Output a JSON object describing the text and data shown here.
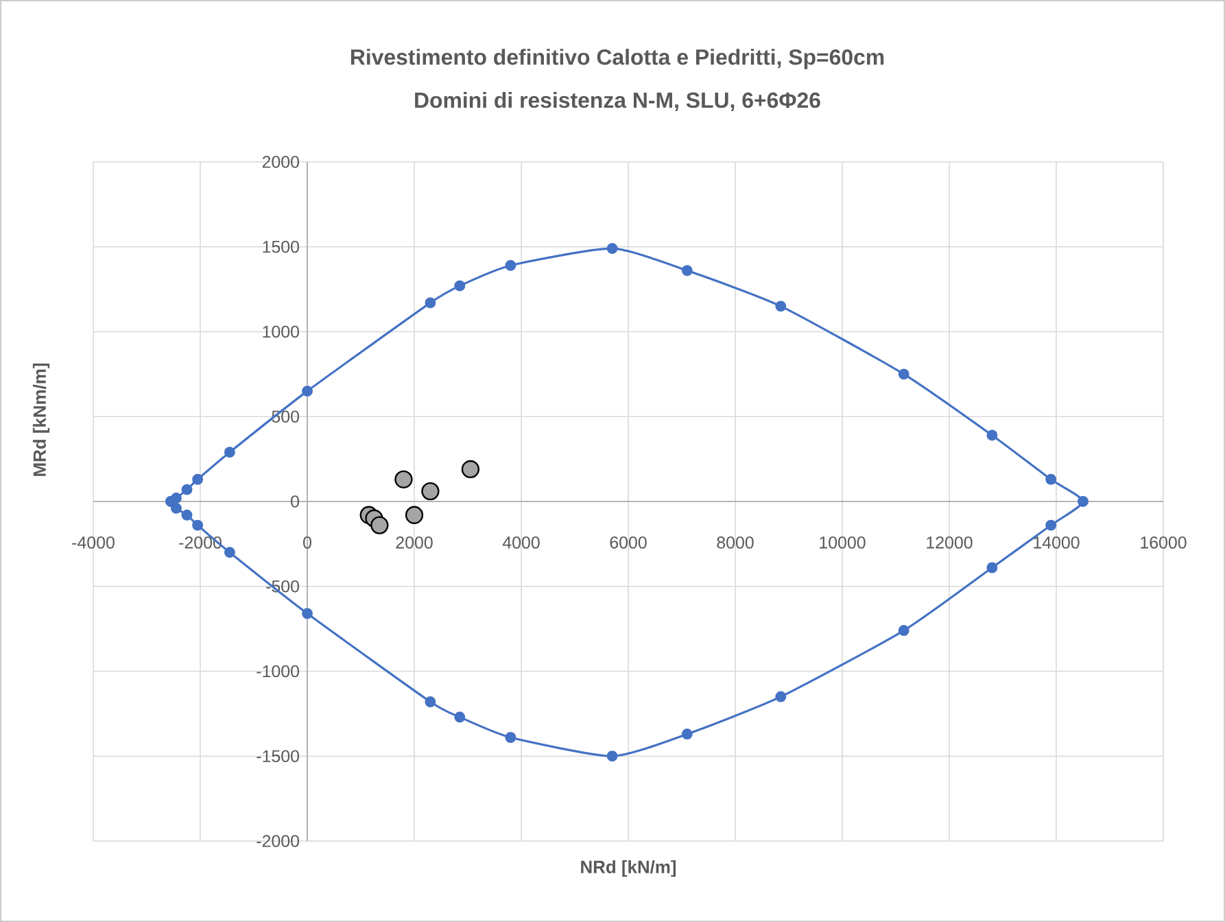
{
  "chart_data": {
    "type": "scatter",
    "title": "Rivestimento definitivo Calotta e Piedritti, Sp=60cm",
    "subtitle": "Domini di resistenza N-M, SLU, 6+6Φ26",
    "xlabel": "NRd [kN/m]",
    "ylabel": "MRd [kNm/m]",
    "xlim": [
      -4000,
      16000
    ],
    "xticks": [
      -4000,
      -2000,
      0,
      2000,
      4000,
      6000,
      8000,
      10000,
      12000,
      14000,
      16000
    ],
    "ylim": [
      -2000,
      2000
    ],
    "yticks": [
      -2000,
      -1500,
      -1000,
      -500,
      0,
      500,
      1000,
      1500,
      2000
    ],
    "grid": true,
    "series": [
      {
        "color": "#4472c4",
        "marker": "circle",
        "line_style": "solid",
        "x": [
          -2550,
          -2450,
          -2250,
          -2050,
          -1450,
          0,
          2300,
          2850,
          3800,
          5700,
          7100,
          8850,
          11150,
          12800,
          13900,
          14500,
          13900,
          12800,
          11150,
          8850,
          7100,
          5700,
          3800,
          2850,
          2300,
          0,
          -1450,
          -2050,
          -2250,
          -2450,
          -2550
        ],
        "values": [
          0,
          20,
          70,
          130,
          290,
          650,
          1170,
          1270,
          1390,
          1490,
          1360,
          1150,
          750,
          390,
          130,
          0,
          -140,
          -390,
          -760,
          -1150,
          -1370,
          -1500,
          -1390,
          -1270,
          -1180,
          -660,
          -300,
          -140,
          -80,
          -40,
          0
        ]
      },
      {
        "color": "#a5a5a5",
        "marker": "circle",
        "x": [
          1800,
          2300,
          3050,
          1150,
          1250,
          2000,
          1350
        ],
        "values": [
          130,
          60,
          190,
          -80,
          -100,
          -80,
          -140
        ]
      }
    ]
  }
}
